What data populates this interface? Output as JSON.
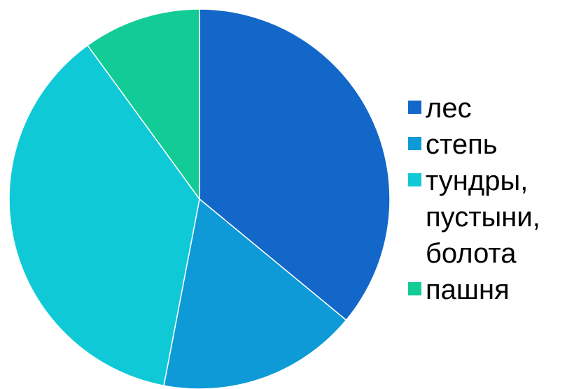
{
  "chart_data": {
    "type": "pie",
    "title": "",
    "categories": [
      "лес",
      "степь",
      "тундры,\nпустыни,\nболота",
      "пашня"
    ],
    "values": [
      36,
      17,
      37,
      10
    ],
    "colors": [
      "#1267c9",
      "#0d9ad6",
      "#0fcad6",
      "#12cb96"
    ],
    "start_angle_deg": 0,
    "direction": "clockwise",
    "legend_position": "right"
  }
}
